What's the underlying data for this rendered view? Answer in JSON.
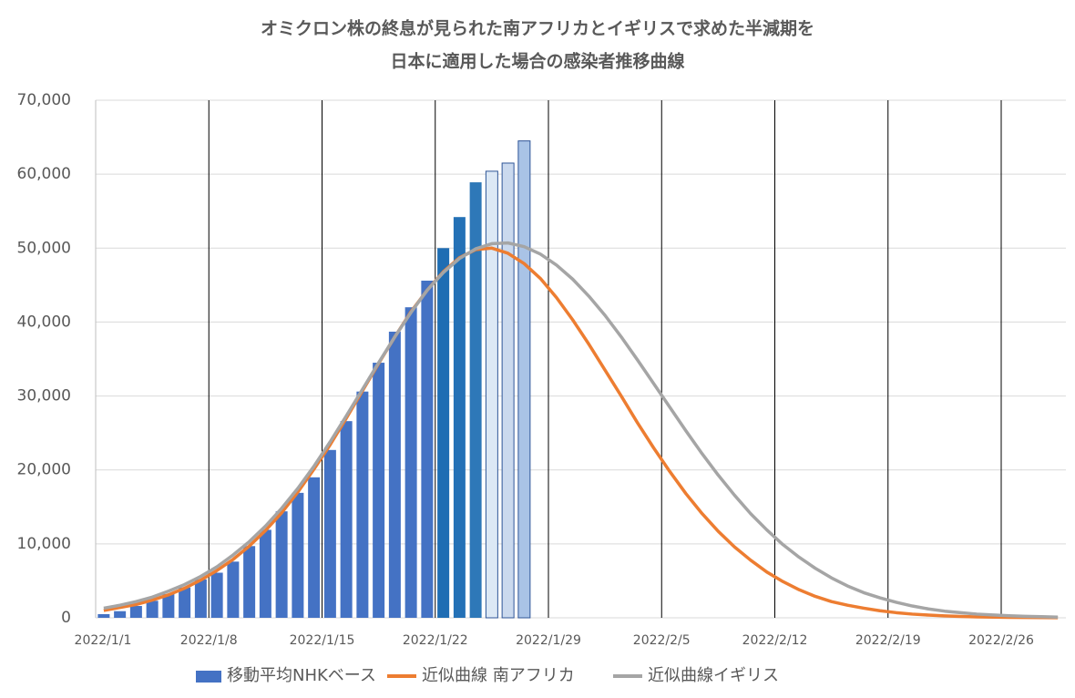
{
  "chart_data": {
    "type": "combo",
    "title": [
      "オミクロン株の終息が見られた南アフリカとイギリスで求めた半減期を",
      "日本に適用した場合の感染者推移曲線"
    ],
    "categories": [
      "2022/1/1",
      null,
      null,
      null,
      null,
      null,
      null,
      "2022/1/8",
      null,
      null,
      null,
      null,
      null,
      null,
      "2022/1/15",
      null,
      null,
      null,
      null,
      null,
      null,
      "2022/1/22",
      null,
      null,
      null,
      null,
      null,
      null,
      "2022/1/29",
      null,
      null,
      null,
      null,
      null,
      null,
      "2022/2/5",
      null,
      null,
      null,
      null,
      null,
      null,
      "2022/2/12",
      null,
      null,
      null,
      null,
      null,
      null,
      "2022/2/19",
      null,
      null,
      null,
      null,
      null,
      null,
      "2022/2/26",
      null,
      null,
      null
    ],
    "ylim": [
      0,
      70000
    ],
    "yticks": [
      0,
      {
        "value": 10000,
        "label": "10,000"
      },
      {
        "value": 20000,
        "label": "20,000"
      },
      {
        "value": 30000,
        "label": "30,000"
      },
      {
        "value": 40000,
        "label": "40,000"
      },
      {
        "value": 50000,
        "label": "50,000"
      },
      {
        "value": 60000,
        "label": "60,000"
      },
      {
        "value": 70000,
        "label": "70,000"
      }
    ],
    "grid": true,
    "legend": "bottom",
    "series": [
      {
        "name": "移動平均NHKベース",
        "kind": "bar",
        "color": "#4472c4",
        "colors": [
          "#4472c4",
          "#4472c4",
          "#4472c4",
          "#4472c4",
          "#4472c4",
          "#4472c4",
          "#4472c4",
          "#4472c4",
          "#4472c4",
          "#4472c4",
          "#4472c4",
          "#4472c4",
          "#4472c4",
          "#4472c4",
          "#4472c4",
          "#4472c4",
          "#4472c4",
          "#4472c4",
          "#4472c4",
          "#4472c4",
          "#4472c4",
          "#1f6db3",
          "#2471b6",
          "#2e78b8",
          "#dce8f5",
          "#cad9ee",
          "#a9c3e6"
        ],
        "values": [
          500,
          900,
          1600,
          2300,
          3200,
          4100,
          5200,
          6100,
          7600,
          9700,
          11900,
          14400,
          16900,
          19000,
          22700,
          26600,
          30600,
          34500,
          38700,
          42000,
          45600,
          50000,
          54200,
          58900,
          60400,
          61500,
          64500,
          null,
          null,
          null,
          null,
          null,
          null,
          null,
          null,
          null,
          null,
          null,
          null,
          null,
          null,
          null,
          null,
          null,
          null,
          null,
          null,
          null,
          null,
          null,
          null,
          null,
          null,
          null,
          null,
          null,
          null,
          null,
          null,
          null
        ]
      },
      {
        "name": "近似曲線 南アフリカ",
        "kind": "line",
        "color": "#ed7d31",
        "values": [
          1000,
          1400,
          1800,
          2400,
          3100,
          4000,
          5100,
          6400,
          7900,
          9700,
          11800,
          14200,
          17000,
          20100,
          23400,
          27000,
          30700,
          34400,
          38000,
          41400,
          44300,
          46800,
          48700,
          49800,
          50000,
          49300,
          47900,
          45900,
          43300,
          40300,
          37000,
          33500,
          30000,
          26400,
          23000,
          19800,
          16800,
          14100,
          11700,
          9600,
          7800,
          6200,
          4900,
          3800,
          2900,
          2200,
          1700,
          1300,
          950,
          700,
          500,
          370,
          260,
          180,
          130,
          90,
          60,
          40,
          30,
          20
        ]
      },
      {
        "name": "近似曲線イギリス",
        "kind": "line",
        "color": "#a5a5a5",
        "values": [
          1300,
          1700,
          2200,
          2800,
          3600,
          4500,
          5600,
          6900,
          8500,
          10300,
          12400,
          14800,
          17500,
          20500,
          23800,
          27300,
          30900,
          34500,
          38000,
          41300,
          44300,
          46700,
          48600,
          49900,
          50600,
          50700,
          50200,
          49200,
          47700,
          45800,
          43500,
          40900,
          38000,
          34900,
          31700,
          28500,
          25300,
          22200,
          19300,
          16600,
          14100,
          11900,
          9900,
          8200,
          6700,
          5400,
          4300,
          3400,
          2700,
          2100,
          1600,
          1200,
          900,
          700,
          500,
          380,
          280,
          200,
          150,
          100
        ]
      }
    ]
  }
}
